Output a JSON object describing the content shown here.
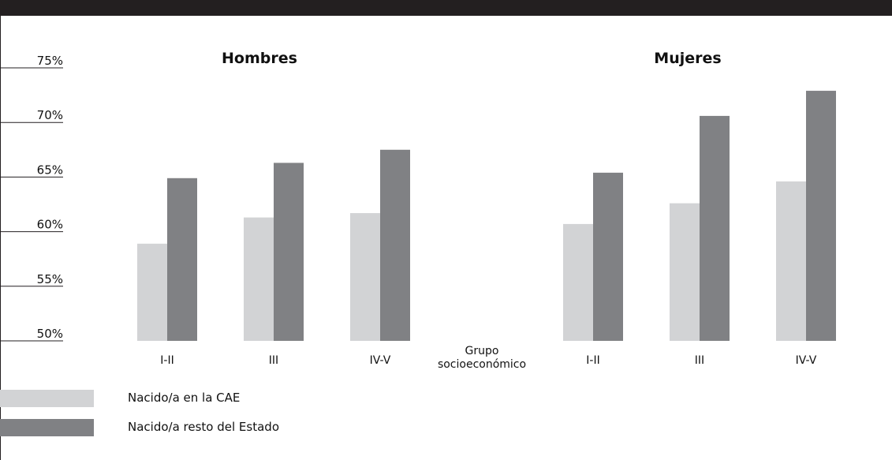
{
  "colors": {
    "series1": "#d2d3d5",
    "series2": "#808184",
    "frame": "#231f20"
  },
  "chart_data": {
    "type": "bar",
    "ylim": [
      50,
      75
    ],
    "yticks": [
      "75%",
      "70%",
      "65%",
      "60%",
      "55%",
      "50%"
    ],
    "ytick_values": [
      75,
      70,
      65,
      60,
      55,
      50
    ],
    "xlabel": "Grupo socioeconómico",
    "xlabel_lines": [
      "Grupo",
      "socioeconómico"
    ],
    "grid": false,
    "legend_placement": "bottom-left",
    "panels": [
      {
        "title": "Hombres",
        "categories": [
          "I-II",
          "III",
          "IV-V"
        ],
        "series": [
          {
            "name": "Nacido/a en la CAE",
            "values": [
              58.9,
              61.3,
              61.7
            ]
          },
          {
            "name": "Nacido/a resto del Estado",
            "values": [
              64.9,
              66.3,
              67.5
            ]
          }
        ]
      },
      {
        "title": "Mujeres",
        "categories": [
          "I-II",
          "III",
          "IV-V"
        ],
        "series": [
          {
            "name": "Nacido/a en la CAE",
            "values": [
              60.7,
              62.6,
              64.6
            ]
          },
          {
            "name": "Nacido/a resto del Estado",
            "values": [
              65.4,
              70.6,
              72.9
            ]
          }
        ]
      }
    ]
  }
}
